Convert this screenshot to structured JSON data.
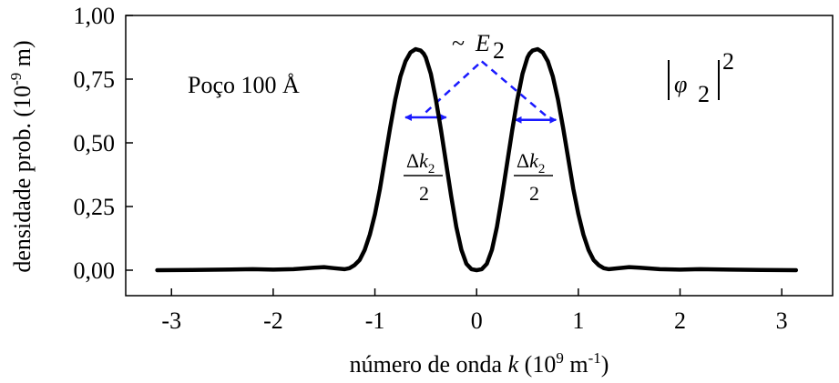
{
  "chart_data": {
    "type": "line",
    "xlabel": "número de onda",
    "xlabel_var": "k",
    "xlabel_unit_open": "(10",
    "xlabel_unit_exp": "9",
    "xlabel_unit_mid": " m",
    "xlabel_unit_exp2": "-1",
    "xlabel_unit_close": ")",
    "ylabel_main": "densidade prob.",
    "ylabel_unit_open": "(10",
    "ylabel_unit_exp": "-9",
    "ylabel_unit_close": " m)",
    "xlim": [
      -3.45,
      3.5
    ],
    "ylim": [
      -0.1,
      1.0
    ],
    "xticks": [
      -3,
      -2,
      -1,
      0,
      1,
      2,
      3
    ],
    "xtick_labels": [
      "-3",
      "-2",
      "-1",
      "0",
      "1",
      "2",
      "3"
    ],
    "yticks": [
      0.0,
      0.25,
      0.5,
      0.75,
      1.0
    ],
    "ytick_labels": [
      "0,00",
      "0,25",
      "0,50",
      "0,75",
      "1,00"
    ],
    "grid": false,
    "series": [
      {
        "color": "#000000",
        "x": [
          -3.14,
          -2.8,
          -2.5,
          -2.2,
          -2.0,
          -1.8,
          -1.6,
          -1.5,
          -1.4,
          -1.3,
          -1.25,
          -1.2,
          -1.15,
          -1.1,
          -1.05,
          -1.0,
          -0.95,
          -0.9,
          -0.85,
          -0.8,
          -0.75,
          -0.7,
          -0.65,
          -0.6,
          -0.55,
          -0.52,
          -0.5,
          -0.45,
          -0.4,
          -0.35,
          -0.3,
          -0.25,
          -0.2,
          -0.15,
          -0.1,
          -0.05,
          0.0,
          0.05,
          0.1,
          0.15,
          0.2,
          0.25,
          0.3,
          0.35,
          0.4,
          0.45,
          0.5,
          0.52,
          0.55,
          0.6,
          0.65,
          0.7,
          0.75,
          0.8,
          0.85,
          0.9,
          0.95,
          1.0,
          1.05,
          1.1,
          1.15,
          1.2,
          1.25,
          1.3,
          1.4,
          1.5,
          1.6,
          1.8,
          2.0,
          2.2,
          2.5,
          2.8,
          3.14
        ],
        "y": [
          0.0,
          0.001,
          0.002,
          0.004,
          0.002,
          0.004,
          0.01,
          0.012,
          0.008,
          0.004,
          0.008,
          0.02,
          0.04,
          0.08,
          0.14,
          0.22,
          0.32,
          0.44,
          0.56,
          0.67,
          0.76,
          0.82,
          0.855,
          0.868,
          0.862,
          0.85,
          0.835,
          0.77,
          0.67,
          0.55,
          0.42,
          0.29,
          0.17,
          0.08,
          0.025,
          0.004,
          0.0,
          0.004,
          0.025,
          0.08,
          0.17,
          0.29,
          0.42,
          0.55,
          0.67,
          0.77,
          0.835,
          0.85,
          0.862,
          0.868,
          0.855,
          0.82,
          0.76,
          0.67,
          0.56,
          0.44,
          0.32,
          0.22,
          0.14,
          0.08,
          0.04,
          0.02,
          0.008,
          0.004,
          0.008,
          0.012,
          0.01,
          0.004,
          0.002,
          0.004,
          0.002,
          0.001,
          0.0
        ]
      }
    ],
    "annotations": {
      "well_label": "Poço 100 Å",
      "psi_label": "φ",
      "psi_sub": "2",
      "psi_sup": "2",
      "energy_tilde": "~",
      "energy_symbol": "E",
      "energy_sub": "2",
      "dk_delta": "Δ",
      "dk_k": "k",
      "dk_sub": "2",
      "dk_denominator": "2",
      "dashed_color": "#1a1aff",
      "dashed_lines": [
        {
          "x1": -0.5,
          "y1": 0.62,
          "x2": 0.05,
          "y2": 0.82
        },
        {
          "x1": 0.05,
          "y1": 0.82,
          "x2": 0.7,
          "y2": 0.6
        }
      ],
      "arrows": [
        {
          "x1": -0.7,
          "x2": -0.3,
          "y": 0.6
        },
        {
          "x1": 0.38,
          "x2": 0.78,
          "y": 0.59
        }
      ]
    }
  }
}
